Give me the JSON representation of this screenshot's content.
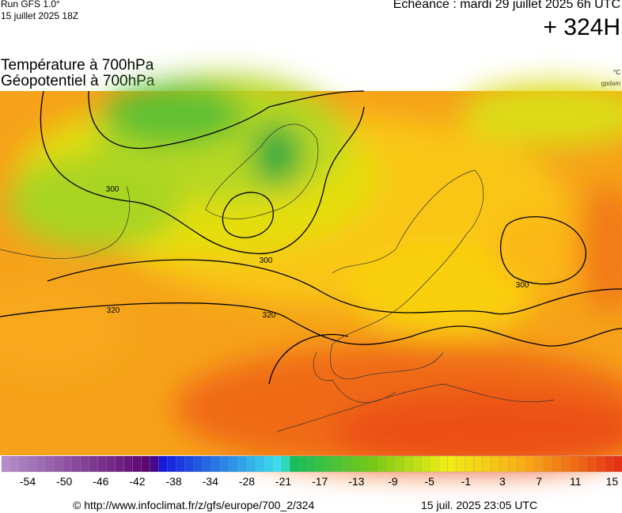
{
  "header": {
    "run": "Run GFS 1.0°",
    "run_date": "15 juillet 2025 18Z",
    "echeance": "Echéance : mardi 29 juillet 2025 6h UTC",
    "lead": "+ 324H"
  },
  "titles": {
    "line1": "Température à 700hPa",
    "line2": "Géopotentiel à 700hPa",
    "unit1": "°C",
    "unit2": "gpdam"
  },
  "contours": [
    "300",
    "300",
    "300",
    "320",
    "320"
  ],
  "colorbar": {
    "labels": [
      -54,
      -50,
      -46,
      -42,
      -38,
      -34,
      -28,
      -21,
      -17,
      -13,
      -9,
      -5,
      -1,
      3,
      7,
      11,
      15
    ]
  },
  "footer": {
    "source": "© http://www.infoclimat.fr/z/gfs/europe/700_2/324",
    "timestamp": "15 juil. 2025 23:05 UTC"
  }
}
